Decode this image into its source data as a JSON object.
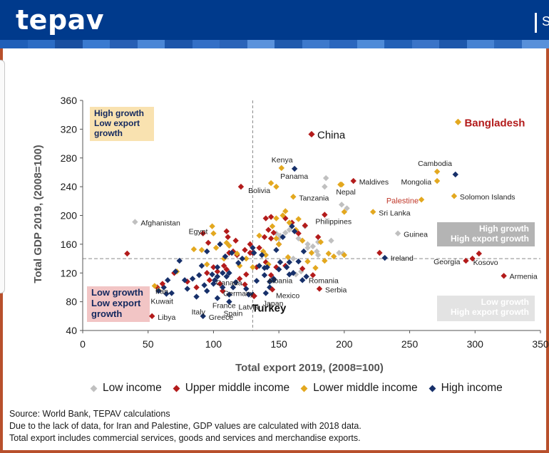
{
  "header": {
    "logo": "tepav",
    "right_text": "S"
  },
  "colors": {
    "header_bg": "#003a8c",
    "low_income": "#c0c0c0",
    "upper_middle_income": "#b31b1b",
    "lower_middle_income": "#e3a81f",
    "high_income": "#17306a"
  },
  "chart_data": {
    "type": "scatter",
    "title": "",
    "xlabel": "Total export 2019, (2008=100)",
    "ylabel": "Total GDP 2019, (2008=100)",
    "xlim": [
      0,
      350
    ],
    "ylim": [
      40,
      360
    ],
    "xticks": [
      0,
      50,
      100,
      150,
      200,
      250,
      300,
      350
    ],
    "yticks": [
      40,
      80,
      120,
      160,
      200,
      240,
      280,
      320,
      360
    ],
    "reference_lines": {
      "x": 130,
      "y": 140
    },
    "quadrant_labels": [
      {
        "lines": [
          "High growth",
          "Low export",
          "growth"
        ]
      },
      {
        "lines": [
          "High growth",
          "High export growth"
        ]
      },
      {
        "lines": [
          "Low growth",
          "Low export",
          "growth"
        ]
      },
      {
        "lines": [
          "Low growth",
          "High export growth"
        ]
      }
    ],
    "highlighted": [
      {
        "name": "China",
        "x": 175,
        "y": 313,
        "group": "upper"
      },
      {
        "name": "Bangladesh",
        "x": 287,
        "y": 330,
        "group": "lower"
      },
      {
        "name": "Turkey",
        "x": 131,
        "y": 88,
        "group": "upper"
      }
    ],
    "labeled_points": [
      {
        "name": "Afghanistan",
        "x": 40,
        "y": 191,
        "group": "low"
      },
      {
        "name": "Kenya",
        "x": 152,
        "y": 266,
        "group": "lower"
      },
      {
        "name": "Panama",
        "x": 162,
        "y": 265,
        "group": "high"
      },
      {
        "name": "Maldives",
        "x": 207,
        "y": 248,
        "group": "upper"
      },
      {
        "name": "Cambodia",
        "x": 271,
        "y": 261,
        "group": "lower"
      },
      {
        "name": "Mongolia",
        "x": 271,
        "y": 248,
        "group": "lower"
      },
      {
        "name": "Bolivia",
        "x": 144,
        "y": 245,
        "group": "lower"
      },
      {
        "name": "Nepal",
        "x": 197,
        "y": 243,
        "group": "lower"
      },
      {
        "name": "Tanzania",
        "x": 161,
        "y": 226,
        "group": "lower"
      },
      {
        "name": "Palestine",
        "x": 259,
        "y": 222,
        "group": "lower"
      },
      {
        "name": "Solomon Islands",
        "x": 284,
        "y": 227,
        "group": "lower"
      },
      {
        "name": "Sri Lanka",
        "x": 222,
        "y": 205,
        "group": "lower"
      },
      {
        "name": "Philippines",
        "x": 185,
        "y": 201,
        "group": "upper"
      },
      {
        "name": "Egypt",
        "x": 99,
        "y": 185,
        "group": "lower"
      },
      {
        "name": "Guinea",
        "x": 241,
        "y": 175,
        "group": "low"
      },
      {
        "name": "Ireland",
        "x": 231,
        "y": 141,
        "group": "high"
      },
      {
        "name": "Georgia",
        "x": 293,
        "y": 137,
        "group": "upper"
      },
      {
        "name": "Kosovo",
        "x": 298,
        "y": 140,
        "group": "upper"
      },
      {
        "name": "Armenia",
        "x": 322,
        "y": 116,
        "group": "upper"
      },
      {
        "name": "Canada",
        "x": 110,
        "y": 115,
        "group": "high"
      },
      {
        "name": "Albania",
        "x": 144,
        "y": 117,
        "group": "upper"
      },
      {
        "name": "Romania",
        "x": 176,
        "y": 117,
        "group": "upper"
      },
      {
        "name": "Iran",
        "x": 61,
        "y": 105,
        "group": "upper"
      },
      {
        "name": "Germany",
        "x": 115,
        "y": 100,
        "group": "high"
      },
      {
        "name": "Mexico",
        "x": 145,
        "y": 97,
        "group": "upper"
      },
      {
        "name": "Serbia",
        "x": 181,
        "y": 98,
        "group": "upper"
      },
      {
        "name": "Japan",
        "x": 140,
        "y": 92,
        "group": "high"
      },
      {
        "name": "France",
        "x": 103,
        "y": 85,
        "group": "high"
      },
      {
        "name": "Kuwait",
        "x": 64,
        "y": 91,
        "group": "high"
      },
      {
        "name": "Latvia",
        "x": 130,
        "y": 90,
        "group": "high"
      },
      {
        "name": "Italy",
        "x": 87,
        "y": 87,
        "group": "high"
      },
      {
        "name": "Spain",
        "x": 112,
        "y": 80,
        "group": "high"
      },
      {
        "name": "Greece",
        "x": 92,
        "y": 60,
        "group": "high"
      },
      {
        "name": "Libya",
        "x": 53,
        "y": 60,
        "group": "upper"
      }
    ],
    "series": [
      {
        "name": "Low income",
        "key": "low",
        "points": [
          [
            148,
            175
          ],
          [
            150,
            168
          ],
          [
            151,
            172
          ],
          [
            155,
            176
          ],
          [
            165,
            168
          ],
          [
            168,
            165
          ],
          [
            172,
            160
          ],
          [
            176,
            157
          ],
          [
            180,
            163
          ],
          [
            190,
            165
          ],
          [
            196,
            148
          ],
          [
            186,
            252
          ],
          [
            198,
            215
          ],
          [
            202,
            210
          ],
          [
            179,
            150
          ],
          [
            172,
            155
          ],
          [
            161,
            140
          ],
          [
            167,
            122
          ],
          [
            163,
            118
          ],
          [
            180,
            145
          ],
          [
            170,
            185
          ],
          [
            158,
            180
          ],
          [
            185,
            240
          ],
          [
            199,
            147
          ]
        ]
      },
      {
        "name": "Upper middle income",
        "key": "upper",
        "points": [
          [
            34,
            147
          ],
          [
            57,
            100
          ],
          [
            70,
            120
          ],
          [
            80,
            108
          ],
          [
            87,
            100
          ],
          [
            95,
            120
          ],
          [
            97,
            110
          ],
          [
            103,
            122
          ],
          [
            105,
            105
          ],
          [
            107,
            95
          ],
          [
            110,
            125
          ],
          [
            115,
            150
          ],
          [
            120,
            112
          ],
          [
            125,
            118
          ],
          [
            128,
            160
          ],
          [
            135,
            155
          ],
          [
            139,
            170
          ],
          [
            140,
            196
          ],
          [
            142,
            180
          ],
          [
            144,
            168
          ],
          [
            150,
            160
          ],
          [
            155,
            196
          ],
          [
            160,
            190
          ],
          [
            165,
            175
          ],
          [
            170,
            186
          ],
          [
            121,
            240
          ],
          [
            110,
            178
          ],
          [
            130,
            148
          ],
          [
            118,
            145
          ],
          [
            108,
            130
          ],
          [
            124,
            104
          ],
          [
            100,
            128
          ],
          [
            92,
            175
          ],
          [
            96,
            162
          ],
          [
            112,
            148
          ],
          [
            117,
            165
          ],
          [
            140,
            135
          ],
          [
            148,
            128
          ],
          [
            133,
            128
          ],
          [
            227,
            148
          ],
          [
            303,
            147
          ],
          [
            168,
            126
          ],
          [
            111,
            170
          ],
          [
            124,
            152
          ],
          [
            128,
            148
          ],
          [
            144,
            198
          ],
          [
            146,
            176
          ],
          [
            155,
            130
          ],
          [
            180,
            170
          ]
        ]
      },
      {
        "name": "Lower middle income",
        "key": "lower",
        "points": [
          [
            55,
            102
          ],
          [
            58,
            96
          ],
          [
            72,
            122
          ],
          [
            85,
            153
          ],
          [
            95,
            132
          ],
          [
            100,
            175
          ],
          [
            102,
            155
          ],
          [
            112,
            158
          ],
          [
            118,
            147
          ],
          [
            125,
            140
          ],
          [
            130,
            128
          ],
          [
            135,
            172
          ],
          [
            140,
            145
          ],
          [
            145,
            185
          ],
          [
            148,
            196
          ],
          [
            150,
            160
          ],
          [
            153,
            200
          ],
          [
            155,
            206
          ],
          [
            158,
            190
          ],
          [
            163,
            180
          ],
          [
            168,
            165
          ],
          [
            172,
            136
          ],
          [
            175,
            148
          ],
          [
            178,
            127
          ],
          [
            182,
            163
          ],
          [
            188,
            147
          ],
          [
            192,
            143
          ],
          [
            200,
            205
          ],
          [
            185,
            137
          ],
          [
            165,
            195
          ],
          [
            138,
            150
          ],
          [
            148,
            168
          ],
          [
            120,
            130
          ],
          [
            108,
            140
          ],
          [
            200,
            145
          ],
          [
            198,
            243
          ],
          [
            91,
            152
          ],
          [
            110,
            162
          ],
          [
            148,
            240
          ],
          [
            157,
            142
          ],
          [
            142,
            132
          ]
        ]
      },
      {
        "name": "High income",
        "key": "high",
        "points": [
          [
            58,
            95
          ],
          [
            62,
            100
          ],
          [
            65,
            110
          ],
          [
            68,
            92
          ],
          [
            71,
            122
          ],
          [
            74,
            137
          ],
          [
            78,
            110
          ],
          [
            80,
            98
          ],
          [
            84,
            112
          ],
          [
            89,
            117
          ],
          [
            91,
            130
          ],
          [
            93,
            103
          ],
          [
            95,
            150
          ],
          [
            99,
            118
          ],
          [
            101,
            110
          ],
          [
            103,
            115
          ],
          [
            105,
            160
          ],
          [
            107,
            100
          ],
          [
            109,
            143
          ],
          [
            112,
            120
          ],
          [
            114,
            148
          ],
          [
            117,
            107
          ],
          [
            119,
            134
          ],
          [
            122,
            140
          ],
          [
            125,
            98
          ],
          [
            127,
            90
          ],
          [
            130,
            155
          ],
          [
            133,
            109
          ],
          [
            135,
            130
          ],
          [
            137,
            145
          ],
          [
            139,
            117
          ],
          [
            141,
            128
          ],
          [
            143,
            108
          ],
          [
            146,
            110
          ],
          [
            148,
            152
          ],
          [
            151,
            135
          ],
          [
            153,
            170
          ],
          [
            156,
            128
          ],
          [
            158,
            118
          ],
          [
            160,
            185
          ],
          [
            162,
            178
          ],
          [
            165,
            136
          ],
          [
            168,
            110
          ],
          [
            171,
            115
          ],
          [
            150,
            125
          ],
          [
            143,
            100
          ],
          [
            158,
            135
          ],
          [
            112,
            90
          ],
          [
            95,
            95
          ],
          [
            103,
            128
          ],
          [
            285,
            257
          ],
          [
            100,
            105
          ],
          [
            107,
            120
          ],
          [
            131,
            148
          ],
          [
            139,
            127
          ],
          [
            161,
            120
          ],
          [
            169,
            150
          ],
          [
            146,
            112
          ]
        ]
      }
    ]
  },
  "legend": [
    {
      "key": "low",
      "label": "Low income"
    },
    {
      "key": "upper",
      "label": "Upper middle income"
    },
    {
      "key": "lower",
      "label": "Lower middle income"
    },
    {
      "key": "high",
      "label": "High income"
    }
  ],
  "source": {
    "line1": "Source: World Bank, TEPAV calculations",
    "line2": "Due to the lack of data, for Iran and Palestine, GDP values are calculated with 2018 data.",
    "line3": "Total export includes commercial services, goods and services and merchandise exports."
  }
}
